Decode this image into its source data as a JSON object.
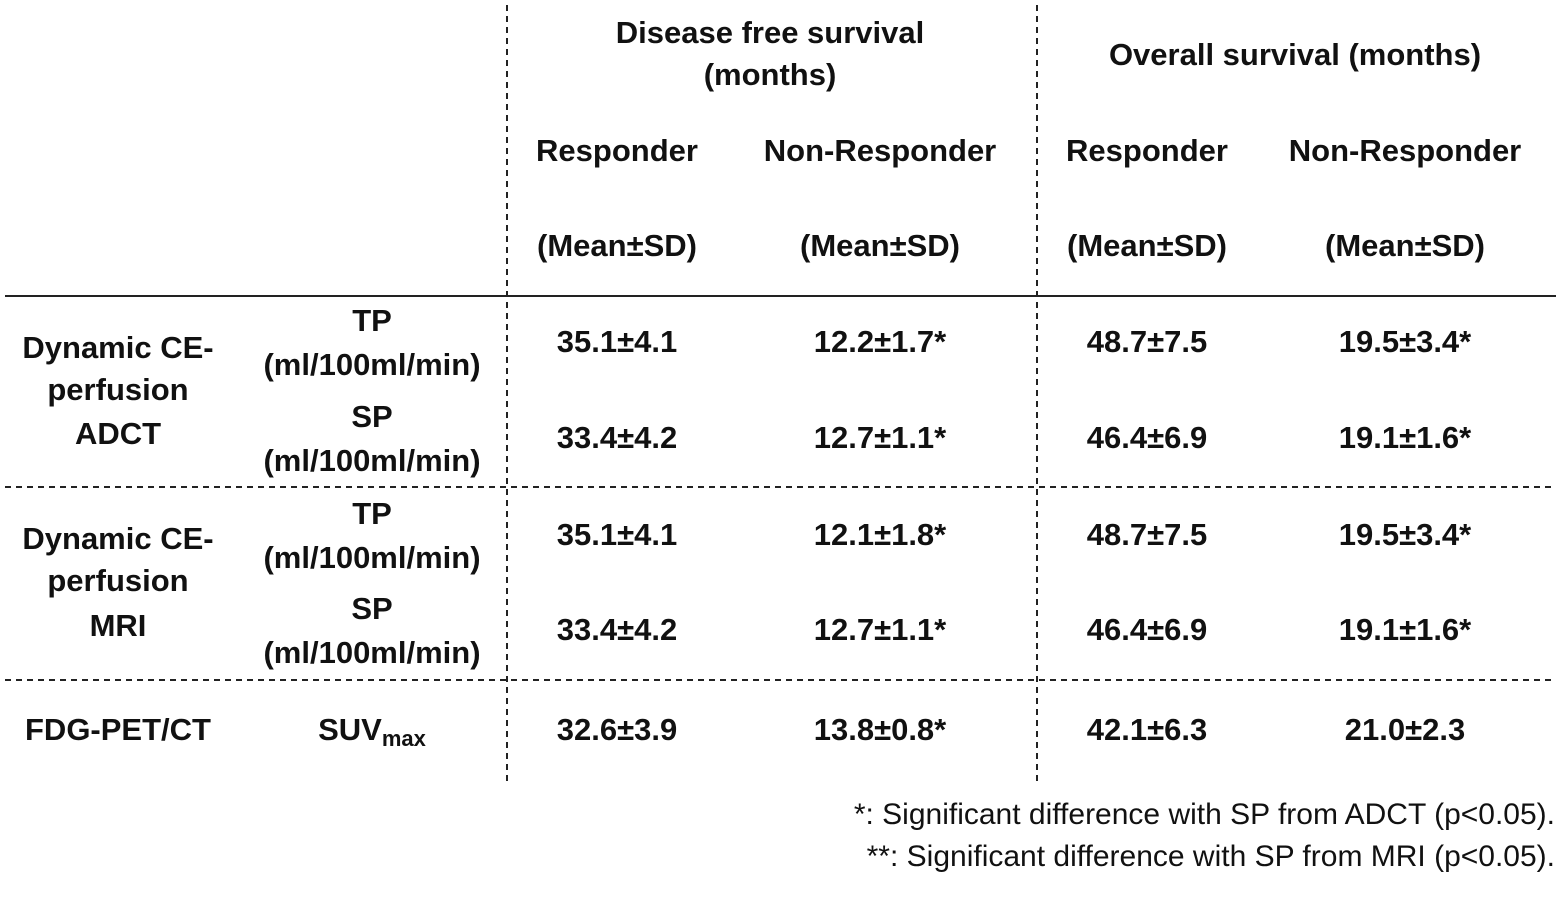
{
  "table": {
    "column_groups": [
      {
        "label": [
          "Disease free survival",
          "(months)"
        ]
      },
      {
        "label": [
          "Overall survival (months)"
        ]
      }
    ],
    "subheaders": [
      {
        "label": "Responder",
        "stat": "(Mean±SD)"
      },
      {
        "label": "Non-Responder",
        "stat": "(Mean±SD)"
      },
      {
        "label": "Responder",
        "stat": "(Mean±SD)"
      },
      {
        "label": "Non-Responder",
        "stat": "(Mean±SD)"
      }
    ],
    "row_groups": [
      {
        "label": [
          "Dynamic CE-",
          "perfusion",
          "ADCT"
        ],
        "rows": [
          {
            "metric": "TP",
            "unit": "(ml/100ml/min)",
            "cells": [
              "35.1±4.1",
              "12.2±1.7*",
              "48.7±7.5",
              "19.5±3.4*"
            ]
          },
          {
            "metric": "SP",
            "unit": "(ml/100ml/min)",
            "cells": [
              "33.4±4.2",
              "12.7±1.1*",
              "46.4±6.9",
              "19.1±1.6*"
            ]
          }
        ]
      },
      {
        "label": [
          "Dynamic CE-",
          "perfusion",
          "MRI"
        ],
        "rows": [
          {
            "metric": "TP",
            "unit": "(ml/100ml/min)",
            "cells": [
              "35.1±4.1",
              "12.1±1.8*",
              "48.7±7.5",
              "19.5±3.4*"
            ]
          },
          {
            "metric": "SP",
            "unit": "(ml/100ml/min)",
            "cells": [
              "33.4±4.2",
              "12.7±1.1*",
              "46.4±6.9",
              "19.1±1.6*"
            ]
          }
        ]
      },
      {
        "label": [
          "FDG-PET/CT"
        ],
        "rows": [
          {
            "metric": "SUV",
            "metric_sub": "max",
            "cells": [
              "32.6±3.9",
              "13.8±0.8*",
              "42.1±6.3",
              "21.0±2.3"
            ]
          }
        ]
      }
    ]
  },
  "footnotes": [
    "*: Significant difference with SP from ADCT  (p<0.05).",
    "**: Significant difference with SP from MRI (p<0.05)."
  ]
}
